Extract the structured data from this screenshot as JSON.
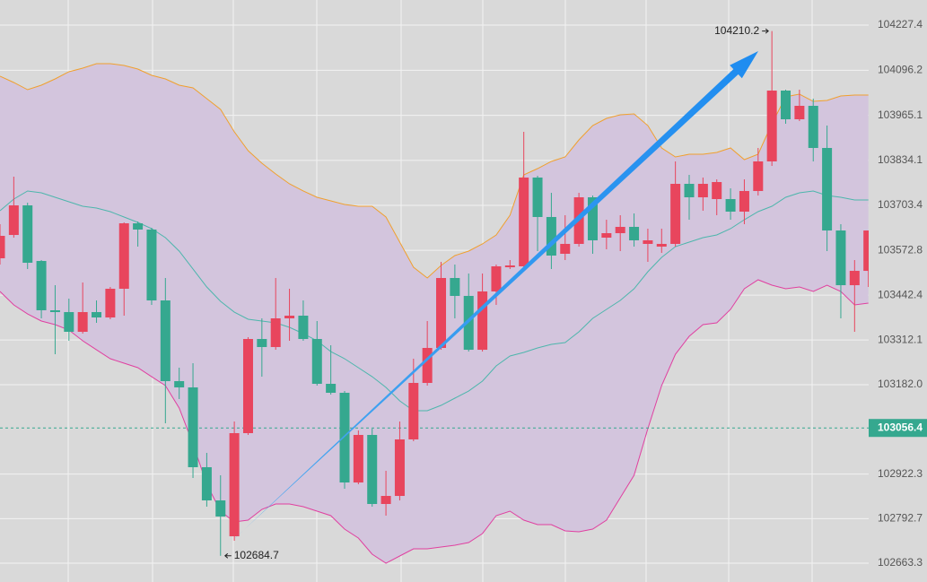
{
  "chart_data": {
    "type": "candlestick",
    "ylim": [
      102608.6,
      104300.4
    ],
    "yticks": [
      104227.4,
      104096.2,
      103965.1,
      103834.1,
      103703.4,
      103572.8,
      103442.4,
      103312.1,
      {
        "value": 103182,
        "label": "103182.0"
      },
      102922.3,
      102792.7,
      102663.3
    ],
    "grid": true,
    "current_price": 103056.4,
    "high_label": 104210.2,
    "low_label": 102684.7,
    "up_color": "#e8455d",
    "down_color": "#35a88f",
    "band_fill": "#d3c5dd",
    "open": [
      103549.6,
      103617.4,
      103703.4,
      103541.8,
      103398.5,
      103393.2,
      103335.9,
      103393.2,
      103377.6,
      103461.0,
      103651.3,
      103633.1,
      103427.1,
      103192.5,
      103174.3,
      102942.3,
      102845.8,
      102741.5,
      103041.3,
      103315.0,
      103291.6,
      103375.0,
      103382.8,
      103315.0,
      103184.7,
      103158.6,
      102897.9,
      103036.1,
      102835.4,
      102858.8,
      103023.1,
      103187.3,
      103289.0,
      103492.3,
      103440.2,
      103283.7,
      103453.2,
      103523.6,
      103526.2,
      103784.3,
      103669.6,
      103562.7,
      103591.4,
      103726.9,
      103609.6,
      103622.6,
      103640.9,
      103591.4,
      103583.5,
      103591.4,
      103766.0,
      103726.9,
      103721.7,
      103721.7,
      103685.2,
      103745.2,
      103831.2,
      104037.1,
      103953.7,
      103992.8,
      103870.3,
      103630.4,
      103471.4,
      103513.1
    ],
    "high": [
      103648.7,
      103786.9,
      103711.3,
      103544.4,
      103471.4,
      103432.3,
      103479.3,
      103427.1,
      103466.2,
      103653.9,
      103656.5,
      103638.3,
      103492.3,
      103231.6,
      103244.6,
      102984.0,
      102918.8,
      103075.2,
      103320.2,
      103375.0,
      103492.3,
      103461.0,
      103427.1,
      103367.2,
      103296.8,
      103163.8,
      103049.1,
      103054.3,
      102931.8,
      103075.2,
      103257.7,
      103367.2,
      103539.2,
      103531.4,
      103505.3,
      103505.3,
      103531.4,
      103544.4,
      103917.2,
      103789.5,
      103739.9,
      103674.8,
      103739.9,
      103732.1,
      103661.7,
      103674.8,
      103680.0,
      103635.7,
      103635.7,
      103831.2,
      103792.1,
      103784.3,
      103779.0,
      103753.0,
      103779.0,
      103870.3,
      104210.2,
      104039.7,
      104039.7,
      104013.7,
      103935.4,
      103648.7,
      103544.4,
      103630.4
    ],
    "low": [
      103531.4,
      103609.6,
      103518.4,
      103375.0,
      103270.7,
      103309.8,
      103330.7,
      103362.0,
      103372.4,
      103382.8,
      103583.5,
      103414.1,
      103070.0,
      103140.4,
      102911.0,
      102827.6,
      102684.7,
      102728.5,
      103036.1,
      103205.5,
      103283.7,
      103309.8,
      103309.8,
      103179.5,
      103153.4,
      102879.7,
      102892.7,
      102827.6,
      102801.5,
      102845.8,
      103017.9,
      103179.5,
      103283.7,
      103375.0,
      103278.5,
      103278.5,
      103414.1,
      103518.4,
      103518.4,
      103570.5,
      103518.4,
      103544.4,
      103583.5,
      103562.7,
      103575.7,
      103570.5,
      103583.5,
      103539.2,
      103565.3,
      103583.5,
      103661.7,
      103687.8,
      103674.8,
      103661.7,
      103648.7,
      103732.1,
      103818.1,
      103940.7,
      103948.5,
      103831.2,
      103570.5,
      103375.0,
      103335.9,
      103466.2
    ],
    "close": [
      103614.8,
      103703.4,
      103536.6,
      103398.5,
      103393.2,
      103335.9,
      103393.2,
      103377.6,
      103461.0,
      103651.3,
      103633.1,
      103427.1,
      103192.5,
      103174.3,
      102942.3,
      102845.8,
      102798.9,
      103041.3,
      103315.0,
      103291.6,
      103375.0,
      103382.8,
      103315.0,
      103184.7,
      103158.6,
      102897.9,
      103036.1,
      102835.4,
      102858.8,
      103023.1,
      103187.3,
      103289.0,
      103492.3,
      103440.2,
      103283.7,
      103453.2,
      103526.2,
      103528.8,
      103784.3,
      103669.6,
      103557.5,
      103591.4,
      103726.9,
      103601.8,
      103622.6,
      103640.9,
      103601.8,
      103601.8,
      103591.4,
      103766.0,
      103726.9,
      103766.0,
      103771.2,
      103685.2,
      103745.2,
      103831.2,
      104037.1,
      103953.7,
      103992.8,
      103870.3,
      103630.4,
      103471.4,
      103513.1,
      103630.4
    ],
    "upper_band": {
      "color": "#f0a02e",
      "values": [
        104078.8,
        104060.6,
        104039.7,
        104052.8,
        104071.0,
        104091.9,
        104102.3,
        104115.3,
        104115.3,
        104110.1,
        104099.7,
        104081.4,
        104071.0,
        104052.8,
        104044.9,
        104013.7,
        103982.4,
        103917.2,
        103862.5,
        103826.0,
        103794.7,
        103766.0,
        103745.2,
        103726.9,
        103716.5,
        103706.0,
        103700.8,
        103700.8,
        103669.6,
        103596.6,
        103523.6,
        103492.3,
        103528.8,
        103557.5,
        103570.5,
        103591.4,
        103617.4,
        103674.8,
        103792.1,
        103810.3,
        103831.2,
        103844.2,
        103893.7,
        103935.4,
        103956.3,
        103966.7,
        103969.3,
        103935.4,
        103870.3,
        103844.2,
        103852.0,
        103852.0,
        103857.2,
        103870.3,
        103836.4,
        103852.0,
        103940.7,
        104018.9,
        104026.7,
        104005.8,
        104008.4,
        104021.5,
        104024.1,
        104024.1
      ]
    },
    "middle_band": {
      "color": "#4db6ac",
      "values": [
        103687.8,
        103721.7,
        103745.2,
        103739.9,
        103726.9,
        103713.9,
        103700.8,
        103695.6,
        103685.2,
        103669.6,
        103653.9,
        103635.7,
        103609.6,
        103570.5,
        103518.4,
        103466.2,
        103424.5,
        103393.2,
        103372.4,
        103367.2,
        103362.0,
        103348.9,
        103330.7,
        103309.8,
        103278.5,
        103257.7,
        103231.6,
        103205.5,
        103174.3,
        103135.2,
        103106.5,
        103106.5,
        103122.1,
        103143.0,
        103163.8,
        103192.5,
        103236.8,
        103265.5,
        103275.9,
        103289.0,
        103299.4,
        103304.6,
        103335.9,
        103375.0,
        103401.1,
        103427.1,
        103461.0,
        103510.5,
        103552.2,
        103583.5,
        103596.6,
        103609.6,
        103617.4,
        103635.7,
        103661.7,
        103685.2,
        103700.8,
        103726.9,
        103739.9,
        103745.2,
        103732.1,
        103726.9,
        103719.1,
        103719.1
      ]
    },
    "lower_band": {
      "color": "#e040a0",
      "values": [
        103453.2,
        103414.1,
        103388.0,
        103367.2,
        103356.7,
        103341.1,
        103309.8,
        103283.7,
        103257.7,
        103244.6,
        103231.6,
        103205.5,
        103179.5,
        103114.3,
        103010.0,
        102892.7,
        102814.5,
        102783.2,
        102788.5,
        102819.7,
        102835.4,
        102835.4,
        102827.6,
        102814.5,
        102801.5,
        102762.4,
        102736.3,
        102689.4,
        102663.3,
        102684.2,
        102705.0,
        102705.0,
        102710.3,
        102715.5,
        102723.3,
        102749.4,
        102801.5,
        102814.5,
        102788.5,
        102775.4,
        102775.4,
        102757.2,
        102754.6,
        102762.4,
        102788.5,
        102853.6,
        102918.8,
        103054.3,
        103179.5,
        103270.7,
        103322.8,
        103356.7,
        103362.0,
        103401.1,
        103461.0,
        103487.1,
        103471.4,
        103461.0,
        103466.2,
        103453.2,
        103471.4,
        103453.2,
        103414.1,
        103419.3
      ]
    }
  }
}
